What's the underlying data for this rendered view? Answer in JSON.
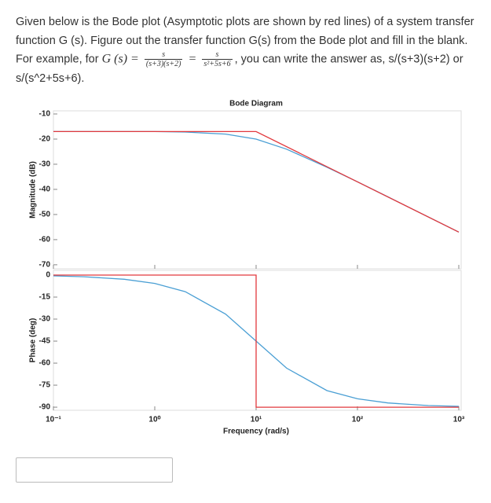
{
  "question": {
    "line1": "Given below is the Bode plot (Asymptotic plots are shown by red lines)  of a system transfer",
    "line2": "function G (s). Figure out the transfer function G(s) from the Bode plot and fill in the blank.",
    "line3_start": "For example, for",
    "math_lhs": "G (s) =",
    "math_num1": "s",
    "math_den1": "(s+3)(s+2)",
    "math_eq": "=",
    "math_num2": "s",
    "math_den2": "s²+5s+6",
    "line3_end": ", you can write the answer as, s/(s+3)(s+2) or",
    "line4": "s/(s^2+5s+6)."
  },
  "chart_data": [
    {
      "type": "line",
      "title": "Bode Diagram",
      "y_label": "Magnitude (dB)",
      "x_scale": "log",
      "xlim": [
        0.1,
        1000
      ],
      "ylim": [
        -71.6,
        -8.75
      ],
      "yticks": [
        -10,
        -20,
        -30,
        -40,
        -50,
        -60,
        -70
      ],
      "series": [
        {
          "color": "#4a9fd4",
          "x": [
            0.1,
            0.2,
            0.5,
            1,
            2,
            5,
            10,
            20,
            50,
            100,
            200,
            500,
            1000
          ],
          "values": [
            -17,
            -17,
            -17,
            -17,
            -17.2,
            -18,
            -20,
            -24,
            -31.2,
            -37,
            -43,
            -51,
            -57
          ]
        },
        {
          "color": "#e2393d",
          "x": [
            0.1,
            10,
            1000
          ],
          "values": [
            -17,
            -17,
            -57
          ]
        }
      ]
    },
    {
      "type": "line",
      "y_label": "Phase (deg)",
      "x_label": "Frequency (rad/s)",
      "x_scale": "log",
      "xlim": [
        0.1,
        1000
      ],
      "ylim": [
        -92.1,
        3.2
      ],
      "yticks": [
        0,
        -15,
        -30,
        -45,
        -60,
        -75,
        -90
      ],
      "xticks": [
        {
          "value": 0.1,
          "label": "10⁻¹"
        },
        {
          "value": 1,
          "label": "10⁰"
        },
        {
          "value": 10,
          "label": "10¹"
        },
        {
          "value": 100,
          "label": "10²"
        },
        {
          "value": 1000,
          "label": "10³"
        }
      ],
      "series": [
        {
          "color": "#4a9fd4",
          "x": [
            0.1,
            0.2,
            0.5,
            1,
            2,
            5,
            10,
            20,
            50,
            100,
            200,
            500,
            1000
          ],
          "values": [
            -0.57,
            -1.15,
            -2.86,
            -5.71,
            -11.3,
            -26.6,
            -45,
            -63.4,
            -78.7,
            -84.3,
            -87.1,
            -88.9,
            -89.4
          ]
        },
        {
          "color": "#e2393d",
          "x": [
            0.1,
            10,
            10,
            1000
          ],
          "values": [
            0,
            0,
            -90,
            -90
          ]
        }
      ]
    }
  ]
}
